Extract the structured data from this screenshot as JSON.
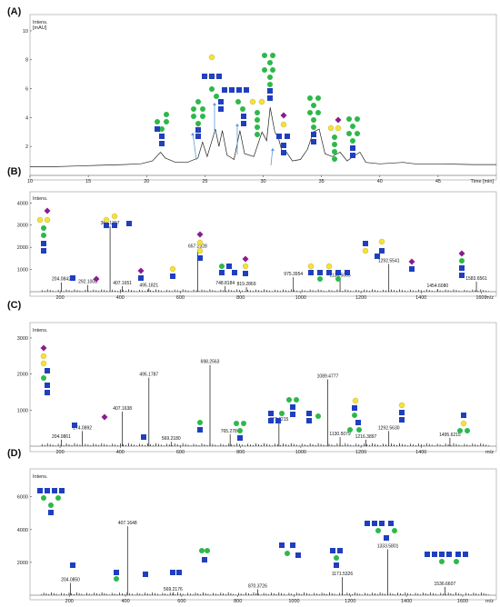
{
  "figure": {
    "colors": {
      "trace": "#222222",
      "glcnac_square": "#1f3fbf",
      "mannose_circle": "#2db84a",
      "galactose_circle": "#f5e23a",
      "sialic_diamond": "#8a1d8f",
      "arrow": "#5b9bd5"
    }
  },
  "chart_data": [
    {
      "panel": "(A)",
      "type": "line",
      "ylabel": "Intens.\n[mAU]",
      "xlabel": "Time [min]",
      "xlim": [
        10,
        50
      ],
      "ylim": [
        0,
        11
      ],
      "xticks": [
        10,
        15,
        20,
        25,
        30,
        35,
        40,
        45
      ],
      "yticks": [
        2,
        4,
        6,
        8,
        10
      ],
      "series": [
        {
          "points": [
            [
              10,
              0.6
            ],
            [
              12,
              0.6
            ],
            [
              14,
              0.65
            ],
            [
              16,
              0.7
            ],
            [
              18,
              0.75
            ],
            [
              19.5,
              0.8
            ],
            [
              20.5,
              1.0
            ],
            [
              21.2,
              1.6
            ],
            [
              21.6,
              1.2
            ],
            [
              22.5,
              0.9
            ],
            [
              23.5,
              0.9
            ],
            [
              24.4,
              1.2
            ],
            [
              24.8,
              2.3
            ],
            [
              25.2,
              1.3
            ],
            [
              25.6,
              2.4
            ],
            [
              25.9,
              3.2
            ],
            [
              26.2,
              2.0
            ],
            [
              26.5,
              3.1
            ],
            [
              26.9,
              1.4
            ],
            [
              27.5,
              1.1
            ],
            [
              28.0,
              3.1
            ],
            [
              28.4,
              1.5
            ],
            [
              29.2,
              1.3
            ],
            [
              29.9,
              3.0
            ],
            [
              30.3,
              2.4
            ],
            [
              30.6,
              4.7
            ],
            [
              31.0,
              3.0
            ],
            [
              31.3,
              2.6
            ],
            [
              31.7,
              1.4
            ],
            [
              32.0,
              1.6
            ],
            [
              32.5,
              1.0
            ],
            [
              33.2,
              1.1
            ],
            [
              33.8,
              1.8
            ],
            [
              34.3,
              3.0
            ],
            [
              34.8,
              3.2
            ],
            [
              35.3,
              1.5
            ],
            [
              35.9,
              1.3
            ],
            [
              36.6,
              1.6
            ],
            [
              37.2,
              1.0
            ],
            [
              37.7,
              1.3
            ],
            [
              38.3,
              1.6
            ],
            [
              38.8,
              0.9
            ],
            [
              40,
              0.8
            ],
            [
              42,
              0.9
            ],
            [
              43,
              0.8
            ],
            [
              45,
              0.8
            ],
            [
              48,
              0.75
            ],
            [
              50,
              0.75
            ]
          ]
        }
      ]
    },
    {
      "panel": "(B)",
      "type": "bar",
      "ylabel": "Intens.",
      "xlabel": "m/z",
      "xlim": [
        100,
        1650
      ],
      "ylim": [
        0,
        4300
      ],
      "xticks": [
        200,
        400,
        600,
        800,
        1000,
        1200,
        1400,
        1600
      ],
      "yticks": [
        1000,
        2000,
        3000,
        4000
      ],
      "peaks": [
        {
          "mz": 204.0842,
          "i": 420,
          "label": "204.0842"
        },
        {
          "mz": 292.1008,
          "i": 300,
          "label": "292.1008"
        },
        {
          "mz": 366.1397,
          "i": 2950,
          "label": "366.1397"
        },
        {
          "mz": 407.1651,
          "i": 250,
          "label": "407.1651"
        },
        {
          "mz": 495.1821,
          "i": 150,
          "label": "495.1821"
        },
        {
          "mz": 657.2328,
          "i": 1900,
          "label": "657.2328"
        },
        {
          "mz": 748.8184,
          "i": 250,
          "label": "748.8184"
        },
        {
          "mz": 819.2869,
          "i": 200,
          "label": "819.2869"
        },
        {
          "mz": 975.3954,
          "i": 650,
          "label": "975.3954"
        },
        {
          "mz": 1130.5055,
          "i": 600,
          "label": "1130.5055"
        },
        {
          "mz": 1292.5541,
          "i": 1250,
          "label": "1292.5541"
        },
        {
          "mz": 1454.608,
          "i": 120,
          "label": "1454.6080"
        },
        {
          "mz": 1583.6561,
          "i": 450,
          "label": "1583.6561"
        }
      ]
    },
    {
      "panel": "(C)",
      "type": "bar",
      "ylabel": "Intens.",
      "xlabel": "m/z",
      "xlim": [
        100,
        1650
      ],
      "ylim": [
        0,
        3300
      ],
      "xticks": [
        200,
        400,
        600,
        800,
        1000,
        1200,
        1400
      ],
      "yticks": [
        1000,
        2000,
        3000
      ],
      "peaks": [
        {
          "mz": 204.0861,
          "i": 180,
          "label": "204.0861"
        },
        {
          "mz": 274.0892,
          "i": 420,
          "label": "274.0892"
        },
        {
          "mz": 407.1638,
          "i": 960,
          "label": "407.1638"
        },
        {
          "mz": 495.1787,
          "i": 1900,
          "label": "495.1787"
        },
        {
          "mz": 569.218,
          "i": 120,
          "label": "569.2180"
        },
        {
          "mz": 698.2563,
          "i": 2250,
          "label": "698.2563"
        },
        {
          "mz": 765.2784,
          "i": 330,
          "label": "765.2784"
        },
        {
          "mz": 927.4215,
          "i": 650,
          "label": "927.4215"
        },
        {
          "mz": 1089.4777,
          "i": 1850,
          "label": "1089.4777"
        },
        {
          "mz": 1130.5079,
          "i": 250,
          "label": "1130.5079"
        },
        {
          "mz": 1216.3897,
          "i": 180,
          "label": "1216.3897"
        },
        {
          "mz": 1292.563,
          "i": 420,
          "label": "1292.5630"
        },
        {
          "mz": 1495.6215,
          "i": 230,
          "label": "1495.6215"
        }
      ]
    },
    {
      "panel": "(D)",
      "type": "bar",
      "ylabel": "Intens.",
      "xlabel": "m/z",
      "xlim": [
        60,
        1720
      ],
      "ylim": [
        0,
        7200
      ],
      "xticks": [
        200,
        400,
        600,
        800,
        1000,
        1200,
        1400,
        1600
      ],
      "yticks": [
        2000,
        4000,
        6000
      ],
      "peaks": [
        {
          "mz": 204.085,
          "i": 750,
          "label": "204.0850"
        },
        {
          "mz": 407.1648,
          "i": 4200,
          "label": "407.1648"
        },
        {
          "mz": 569.2176,
          "i": 180,
          "label": "569.2176"
        },
        {
          "mz": 870.3726,
          "i": 350,
          "label": "870.3726"
        },
        {
          "mz": 1171.5326,
          "i": 1100,
          "label": "1171.5326"
        },
        {
          "mz": 1333.5801,
          "i": 2800,
          "label": "1333.5801"
        },
        {
          "mz": 1536.6607,
          "i": 500,
          "label": "1536.6607"
        }
      ]
    }
  ]
}
